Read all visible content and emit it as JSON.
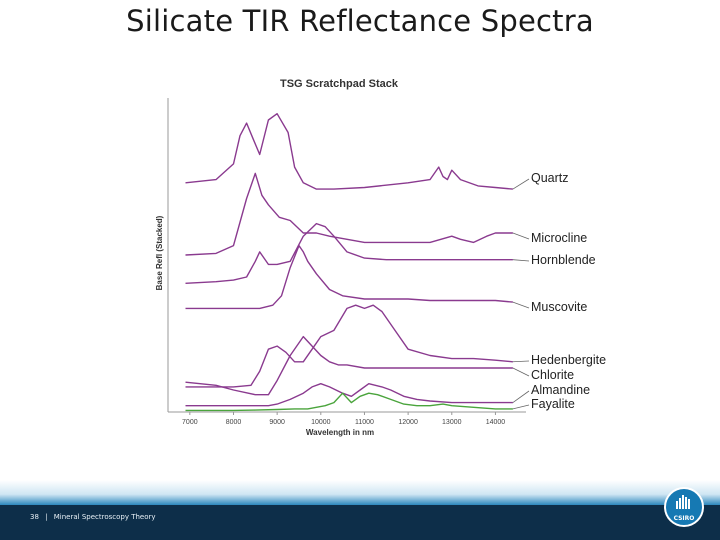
{
  "slide": {
    "title": "Silicate TIR Reflectance Spectra",
    "page_number": "38",
    "separator": "|",
    "footer_text": "Mineral Spectroscopy Theory",
    "logo_text": "CSIRO"
  },
  "colors": {
    "curve": "#8a3a8f",
    "fayalite": "#4aa43c",
    "footer_dark": "#0d2e49",
    "footer_blue": "#1d7fb9",
    "logo": "#1679b3"
  },
  "chart_data": {
    "type": "line",
    "title": "TSG Scratchpad Stack",
    "xlabel": "Wavelength in nm",
    "ylabel": "Base Refl (Stacked)",
    "xlim": [
      6500,
      14700
    ],
    "ylim": [
      0,
      100
    ],
    "xticks": [
      7000,
      8000,
      9000,
      10000,
      11000,
      12000,
      13000,
      14000
    ],
    "grid": false,
    "legend": "right (labels at line ends)",
    "series": [
      {
        "name": "Quartz",
        "color": "#8a3a8f",
        "x": [
          6900,
          7600,
          8000,
          8150,
          8300,
          8450,
          8600,
          8800,
          9000,
          9250,
          9400,
          9600,
          9900,
          10300,
          11000,
          12000,
          12500,
          12700,
          12800,
          12900,
          13000,
          13200,
          13600,
          14000,
          14400
        ],
        "y": [
          73,
          74,
          79,
          88,
          92,
          87,
          82,
          93,
          95,
          89,
          78,
          73,
          71,
          71,
          71.5,
          73,
          74,
          78,
          75,
          74,
          77,
          74,
          72,
          71.5,
          71
        ]
      },
      {
        "name": "Microcline",
        "color": "#8a3a8f",
        "x": [
          6900,
          7600,
          8000,
          8300,
          8500,
          8650,
          8800,
          9050,
          9300,
          9600,
          9900,
          10200,
          10600,
          11000,
          11500,
          12000,
          12500,
          13000,
          13200,
          13500,
          13800,
          14000,
          14400
        ],
        "y": [
          50,
          50.5,
          53,
          68,
          76,
          69,
          66,
          62,
          61,
          57,
          57,
          56,
          55,
          54,
          54,
          54,
          54,
          56,
          55,
          54,
          56,
          57,
          57
        ]
      },
      {
        "name": "Hornblende",
        "color": "#8a3a8f",
        "x": [
          6900,
          7600,
          8000,
          8300,
          8500,
          8600,
          8800,
          9000,
          9300,
          9600,
          9900,
          10100,
          10300,
          10600,
          11000,
          11500,
          12000,
          12500,
          13000,
          13500,
          14000,
          14400
        ],
        "y": [
          41,
          41.5,
          42,
          43,
          48,
          51,
          47,
          47,
          48,
          56,
          60,
          59,
          56,
          51,
          49,
          48.5,
          48.5,
          48.5,
          48.5,
          48.5,
          48.5,
          48.5
        ]
      },
      {
        "name": "Muscovite",
        "color": "#8a3a8f",
        "x": [
          6900,
          7600,
          8200,
          8600,
          8900,
          9100,
          9300,
          9500,
          9600,
          9700,
          9900,
          10200,
          10500,
          11000,
          11500,
          12000,
          12500,
          13000,
          13500,
          14000,
          14400
        ],
        "y": [
          33,
          33,
          33,
          33,
          34,
          37,
          46,
          53,
          51,
          48,
          44,
          39,
          37,
          36,
          36,
          36,
          35.5,
          35.5,
          35.5,
          35.5,
          35
        ]
      },
      {
        "name": "Hedenbergite",
        "color": "#8a3a8f",
        "x": [
          6900,
          7600,
          8000,
          8400,
          8600,
          8800,
          9000,
          9200,
          9400,
          9600,
          9800,
          10000,
          10300,
          10600,
          10800,
          11000,
          11200,
          11400,
          11700,
          12000,
          12500,
          13000,
          13500,
          14000,
          14400
        ],
        "y": [
          8,
          8,
          8,
          8.5,
          13,
          20,
          21,
          19,
          16,
          16,
          20,
          24,
          26,
          33,
          34,
          33,
          34,
          32,
          26,
          20,
          18,
          17,
          17,
          16.5,
          16
        ]
      },
      {
        "name": "Chlorite",
        "color": "#8a3a8f",
        "x": [
          6900,
          7600,
          8000,
          8500,
          8800,
          9000,
          9300,
          9600,
          9800,
          10000,
          10200,
          10400,
          10600,
          11000,
          11500,
          12000,
          12500,
          13000,
          13500,
          14000,
          14400
        ],
        "y": [
          9.5,
          8.5,
          7,
          5.5,
          5.5,
          10,
          18,
          24,
          21,
          18,
          16,
          15,
          15,
          14,
          14,
          14,
          14,
          14,
          14,
          14,
          14
        ]
      },
      {
        "name": "Almandine",
        "color": "#8a3a8f",
        "x": [
          6900,
          7600,
          8000,
          8500,
          8800,
          9000,
          9300,
          9600,
          9800,
          10000,
          10200,
          10500,
          10700,
          10900,
          11100,
          11400,
          11600,
          11900,
          12200,
          12500,
          13000,
          13500,
          14000,
          14400
        ],
        "y": [
          2,
          2,
          2,
          2,
          2,
          2.5,
          4,
          6,
          8,
          9,
          8,
          6,
          5,
          7,
          9,
          8,
          7,
          5,
          4,
          3.5,
          3,
          3,
          3,
          3
        ]
      },
      {
        "name": "Fayalite",
        "color": "#4aa43c",
        "x": [
          6900,
          7600,
          8000,
          8500,
          9000,
          9400,
          9700,
          9900,
          10100,
          10300,
          10500,
          10700,
          10900,
          11100,
          11300,
          11600,
          11900,
          12200,
          12500,
          12800,
          13000,
          13500,
          14000,
          14400
        ],
        "y": [
          0.5,
          0.5,
          0.5,
          0.6,
          0.8,
          1,
          1,
          1.5,
          2,
          3,
          6,
          3,
          5,
          6,
          5.5,
          4,
          2.5,
          2,
          2,
          2.5,
          2,
          1.5,
          1,
          1
        ]
      }
    ]
  }
}
